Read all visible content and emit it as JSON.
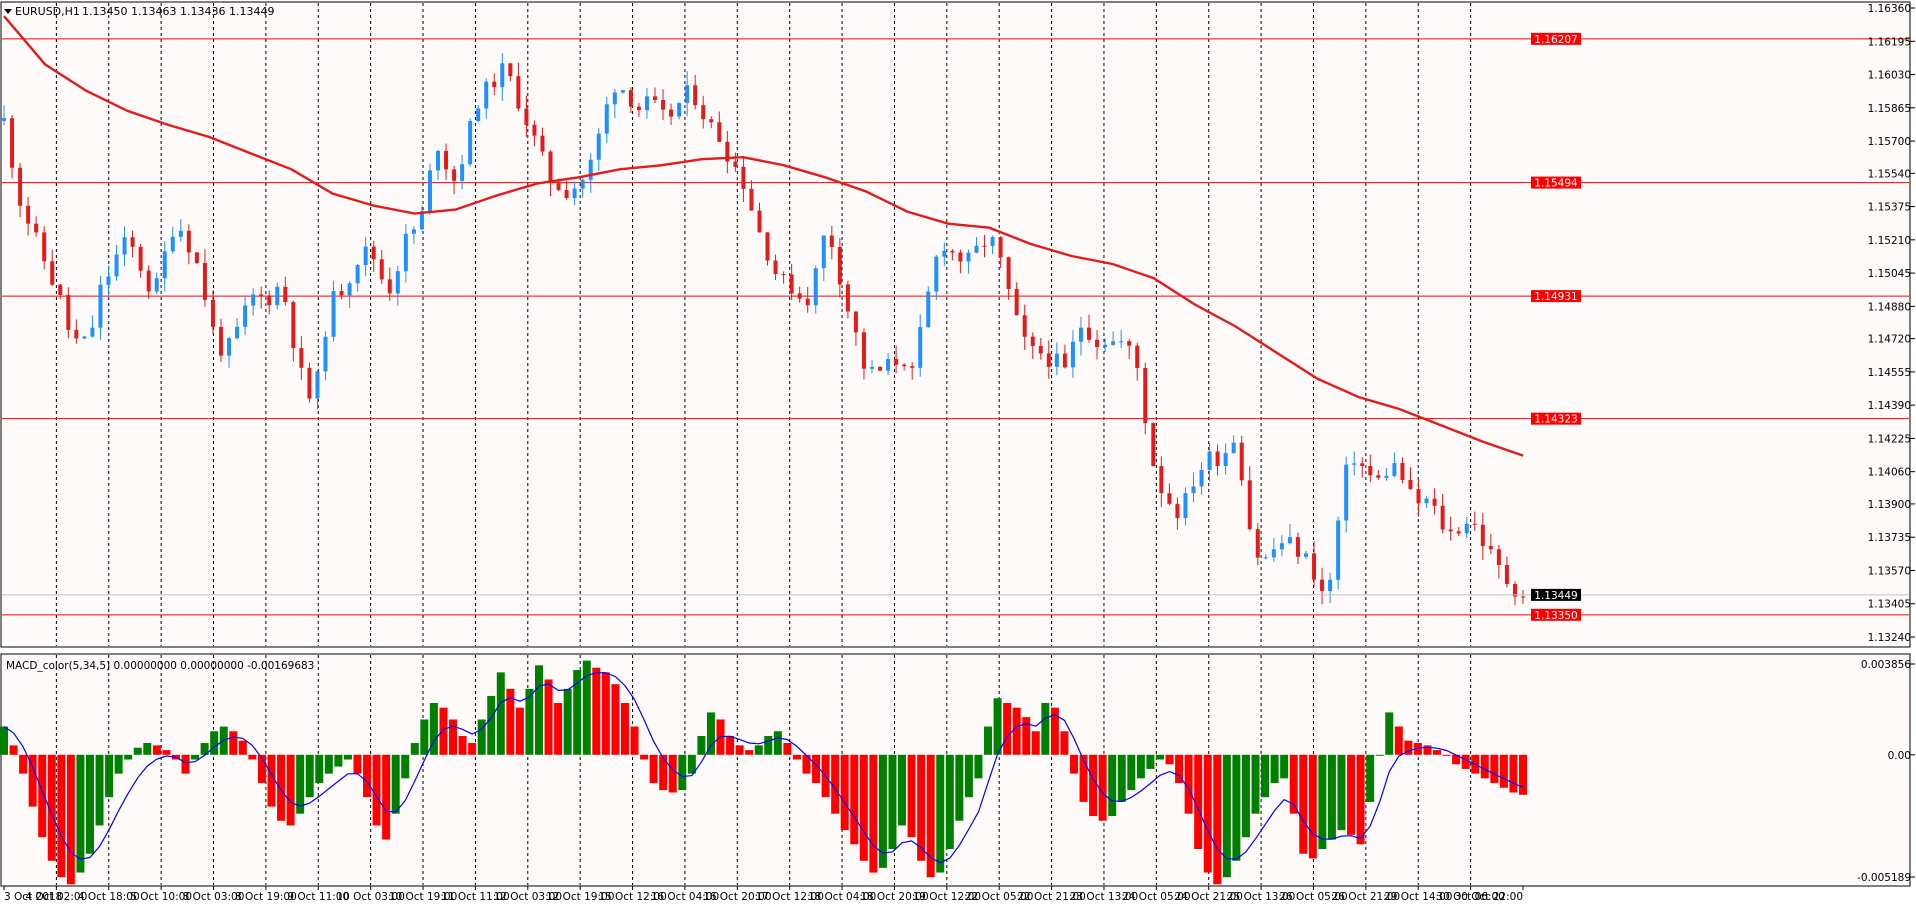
{
  "chart_data": [
    {
      "type": "candlestick",
      "header": {
        "symbol": "EURUSD,H1",
        "ohlc": "1.13450 1.13463 1.13436 1.13449"
      },
      "ylim": [
        1.1324,
        1.1636
      ],
      "price_ticks": [
        "1.16360",
        "1.16195",
        "1.16030",
        "1.15865",
        "1.15700",
        "1.15540",
        "1.15375",
        "1.15210",
        "1.15045",
        "1.14880",
        "1.14720",
        "1.14555",
        "1.14390",
        "1.14225",
        "1.14060",
        "1.13900",
        "1.13735",
        "1.13570",
        "1.13405",
        "1.13240"
      ],
      "horizontal_levels": [
        {
          "value": 1.16207,
          "label": "1.16207"
        },
        {
          "value": 1.15494,
          "label": "1.15494"
        },
        {
          "value": 1.14931,
          "label": "1.14931"
        },
        {
          "value": 1.14323,
          "label": "1.14323"
        },
        {
          "value": 1.1335,
          "label": "1.13350"
        }
      ],
      "current_price": {
        "value": 1.13449,
        "label": "1.13449"
      },
      "time_labels": [
        "3 Oct 2018",
        "4 Oct 02:00",
        "4 Oct 18:00",
        "5 Oct 10:00",
        "8 Oct 03:00",
        "8 Oct 19:00",
        "9 Oct 11:00",
        "10 Oct 03:00",
        "10 Oct 19:00",
        "11 Oct 11:00",
        "12 Oct 03:00",
        "12 Oct 19:00",
        "15 Oct 12:00",
        "16 Oct 04:00",
        "16 Oct 20:00",
        "17 Oct 12:00",
        "18 Oct 04:00",
        "18 Oct 20:00",
        "19 Oct 12:00",
        "22 Oct 05:00",
        "22 Oct 21:00",
        "23 Oct 13:00",
        "24 Oct 05:00",
        "24 Oct 21:00",
        "25 Oct 13:00",
        "26 Oct 05:00",
        "26 Oct 21:00",
        "29 Oct 14:00",
        "30 Oct 06:00",
        "30 Oct 22:00"
      ],
      "close_path": [
        [
          0,
          1.158
        ],
        [
          3,
          1.156
        ],
        [
          6,
          1.154
        ],
        [
          9,
          1.153
        ],
        [
          12,
          1.152
        ],
        [
          15,
          1.151
        ],
        [
          18,
          1.15
        ],
        [
          21,
          1.149
        ],
        [
          24,
          1.1475
        ],
        [
          27,
          1.147
        ],
        [
          30,
          1.147
        ],
        [
          33,
          1.148
        ],
        [
          36,
          1.15
        ],
        [
          39,
          1.1505
        ],
        [
          42,
          1.1515
        ],
        [
          45,
          1.152
        ],
        [
          48,
          1.1515
        ],
        [
          51,
          1.1505
        ],
        [
          54,
          1.1495
        ],
        [
          57,
          1.15
        ],
        [
          60,
          1.152
        ],
        [
          63,
          1.153
        ],
        [
          66,
          1.1525
        ],
        [
          69,
          1.1515
        ],
        [
          72,
          1.1505
        ],
        [
          75,
          1.1485
        ],
        [
          78,
          1.147
        ],
        [
          81,
          1.1465
        ],
        [
          84,
          1.147
        ],
        [
          87,
          1.148
        ],
        [
          90,
          1.149
        ],
        [
          93,
          1.1495
        ],
        [
          96,
          1.149
        ],
        [
          99,
          1.1495
        ],
        [
          102,
          1.15
        ],
        [
          105,
          1.148
        ],
        [
          108,
          1.146
        ],
        [
          111,
          1.1445
        ],
        [
          114,
          1.144
        ],
        [
          117,
          1.147
        ],
        [
          120,
          1.149
        ],
        [
          123,
          1.1495
        ],
        [
          126,
          1.15
        ],
        [
          129,
          1.151
        ],
        [
          132,
          1.1515
        ],
        [
          135,
          1.1515
        ],
        [
          138,
          1.1505
        ],
        [
          141,
          1.1495
        ],
        [
          144,
          1.1505
        ],
        [
          147,
          1.152
        ],
        [
          150,
          1.1525
        ],
        [
          153,
          1.153
        ],
        [
          156,
          1.155
        ],
        [
          159,
          1.157
        ],
        [
          162,
          1.156
        ],
        [
          165,
          1.155
        ],
        [
          168,
          1.156
        ],
        [
          171,
          1.1575
        ],
        [
          174,
          1.159
        ],
        [
          177,
          1.1595
        ],
        [
          180,
          1.16
        ],
        [
          183,
          1.1605
        ],
        [
          186,
          1.16
        ],
        [
          189,
          1.159
        ],
        [
          192,
          1.158
        ],
        [
          195,
          1.157
        ],
        [
          198,
          1.156
        ],
        [
          201,
          1.155
        ],
        [
          204,
          1.1548
        ],
        [
          207,
          1.1545
        ],
        [
          210,
          1.1548
        ],
        [
          213,
          1.1552
        ],
        [
          216,
          1.156
        ],
        [
          219,
          1.1575
        ],
        [
          222,
          1.159
        ],
        [
          225,
          1.16
        ],
        [
          228,
          1.1595
        ],
        [
          231,
          1.159
        ],
        [
          234,
          1.1585
        ],
        [
          237,
          1.159
        ],
        [
          240,
          1.1585
        ],
        [
          243,
          1.158
        ],
        [
          246,
          1.1585
        ],
        [
          249,
          1.159
        ],
        [
          252,
          1.1595
        ],
        [
          255,
          1.159
        ],
        [
          258,
          1.158
        ],
        [
          261,
          1.1575
        ],
        [
          264,
          1.157
        ],
        [
          267,
          1.156
        ],
        [
          270,
          1.1555
        ],
        [
          273,
          1.1545
        ],
        [
          276,
          1.153
        ],
        [
          279,
          1.152
        ],
        [
          282,
          1.151
        ],
        [
          285,
          1.15
        ],
        [
          288,
          1.15
        ],
        [
          291,
          1.1495
        ],
        [
          294,
          1.149
        ],
        [
          297,
          1.1495
        ],
        [
          300,
          1.152
        ],
        [
          303,
          1.1525
        ],
        [
          306,
          1.151
        ],
        [
          309,
          1.149
        ],
        [
          312,
          1.148
        ],
        [
          315,
          1.146
        ],
        [
          318,
          1.1455
        ],
        [
          321,
          1.1455
        ],
        [
          324,
          1.1458
        ],
        [
          327,
          1.146
        ],
        [
          330,
          1.1465
        ],
        [
          333,
          1.145
        ],
        [
          336,
          1.147
        ],
        [
          339,
          1.149
        ],
        [
          342,
          1.151
        ],
        [
          345,
          1.152
        ],
        [
          348,
          1.1515
        ],
        [
          351,
          1.1512
        ],
        [
          354,
          1.151
        ],
        [
          357,
          1.1515
        ],
        [
          360,
          1.152
        ],
        [
          363,
          1.152
        ],
        [
          366,
          1.151
        ],
        [
          369,
          1.1495
        ],
        [
          372,
          1.148
        ],
        [
          375,
          1.147
        ],
        [
          378,
          1.1465
        ],
        [
          381,
          1.1465
        ],
        [
          384,
          1.1462
        ],
        [
          387,
          1.146
        ],
        [
          390,
          1.1455
        ],
        [
          393,
          1.147
        ],
        [
          396,
          1.148
        ],
        [
          399,
          1.1475
        ],
        [
          402,
          1.147
        ],
        [
          405,
          1.1472
        ],
        [
          408,
          1.147
        ],
        [
          411,
          1.147
        ],
        [
          414,
          1.1465
        ],
        [
          417,
          1.1455
        ],
        [
          420,
          1.1425
        ],
        [
          423,
          1.1405
        ],
        [
          426,
          1.1395
        ],
        [
          429,
          1.139
        ],
        [
          432,
          1.1385
        ],
        [
          435,
          1.1395
        ],
        [
          438,
          1.1405
        ],
        [
          441,
          1.141
        ],
        [
          444,
          1.1415
        ],
        [
          447,
          1.1412
        ],
        [
          450,
          1.142
        ],
        [
          453,
          1.1425
        ],
        [
          456,
          1.139
        ],
        [
          459,
          1.137
        ],
        [
          462,
          1.136
        ],
        [
          465,
          1.1365
        ],
        [
          468,
          1.137
        ],
        [
          471,
          1.1372
        ],
        [
          474,
          1.1368
        ],
        [
          477,
          1.1365
        ],
        [
          480,
          1.136
        ],
        [
          483,
          1.135
        ],
        [
          486,
          1.134
        ],
        [
          489,
          1.137
        ],
        [
          492,
          1.14
        ],
        [
          495,
          1.1415
        ],
        [
          498,
          1.141
        ],
        [
          501,
          1.1405
        ],
        [
          504,
          1.14
        ],
        [
          507,
          1.1405
        ],
        [
          510,
          1.141
        ],
        [
          513,
          1.1405
        ],
        [
          516,
          1.1395
        ],
        [
          519,
          1.139
        ],
        [
          522,
          1.1392
        ],
        [
          525,
          1.1388
        ],
        [
          528,
          1.138
        ],
        [
          531,
          1.1375
        ],
        [
          534,
          1.1378
        ],
        [
          537,
          1.1382
        ],
        [
          540,
          1.138
        ],
        [
          543,
          1.1372
        ],
        [
          546,
          1.1365
        ],
        [
          549,
          1.1358
        ],
        [
          552,
          1.1352
        ],
        [
          555,
          1.1348
        ],
        [
          558,
          1.1345
        ]
      ],
      "ma_path": [
        [
          0,
          1.1632
        ],
        [
          15,
          1.1608
        ],
        [
          30,
          1.1595
        ],
        [
          45,
          1.1585
        ],
        [
          60,
          1.1578
        ],
        [
          75,
          1.1572
        ],
        [
          90,
          1.1564
        ],
        [
          105,
          1.1556
        ],
        [
          120,
          1.1544
        ],
        [
          135,
          1.1538
        ],
        [
          150,
          1.1534
        ],
        [
          165,
          1.1536
        ],
        [
          180,
          1.1543
        ],
        [
          195,
          1.1549
        ],
        [
          210,
          1.1552
        ],
        [
          225,
          1.1556
        ],
        [
          240,
          1.1558
        ],
        [
          255,
          1.1561
        ],
        [
          270,
          1.1562
        ],
        [
          285,
          1.1558
        ],
        [
          300,
          1.1552
        ],
        [
          315,
          1.1545
        ],
        [
          330,
          1.1535
        ],
        [
          345,
          1.1529
        ],
        [
          360,
          1.1527
        ],
        [
          375,
          1.1519
        ],
        [
          390,
          1.1513
        ],
        [
          405,
          1.1509
        ],
        [
          420,
          1.1502
        ],
        [
          435,
          1.1489
        ],
        [
          450,
          1.1478
        ],
        [
          465,
          1.1465
        ],
        [
          480,
          1.1452
        ],
        [
          495,
          1.1443
        ],
        [
          510,
          1.1437
        ],
        [
          525,
          1.1429
        ],
        [
          540,
          1.1421
        ],
        [
          555,
          1.1414
        ]
      ]
    },
    {
      "type": "bar",
      "title": "MACD_color(5,34,5) 0.00000000 0.00000000 -0.00169683",
      "ylim": [
        -0.005189,
        0.003856
      ],
      "y_ticks": [
        "0.003856",
        "0.00",
        "-0.005189"
      ],
      "series": [
        {
          "name": "",
          "values": [
            0.0012,
            0.0004,
            -0.0008,
            -0.0022,
            -0.0035,
            -0.0045,
            -0.0052,
            -0.0055,
            -0.005,
            -0.0042,
            -0.003,
            -0.0018,
            -0.0008,
            -0.0002,
            0.0003,
            0.0005,
            0.0004,
            0.0002,
            -0.0002,
            -0.0008,
            -0.0002,
            0.0005,
            0.001,
            0.0012,
            0.001,
            0.0006,
            -0.0002,
            -0.0012,
            -0.0022,
            -0.0028,
            -0.003,
            -0.0025,
            -0.0018,
            -0.0012,
            -0.0008,
            -0.0005,
            -0.0002,
            -0.0008,
            -0.0018,
            -0.003,
            -0.0036,
            -0.0025,
            -0.001,
            0.0005,
            0.0015,
            0.0022,
            0.002,
            0.0015,
            0.0008,
            0.0005,
            0.0015,
            0.0025,
            0.0035,
            0.0028,
            0.002,
            0.0028,
            0.0038,
            0.0032,
            0.0022,
            0.0028,
            0.0036,
            0.004,
            0.0037,
            0.0035,
            0.003,
            0.0022,
            0.0012,
            -0.0002,
            -0.0012,
            -0.0015,
            -0.0016,
            -0.0015,
            -0.0008,
            0.0008,
            0.0018,
            0.0015,
            0.0008,
            0.0004,
            0.0002,
            0.0004,
            0.0008,
            0.001,
            0.0005,
            -0.0002,
            -0.0008,
            -0.0012,
            -0.0018,
            -0.0025,
            -0.0032,
            -0.0038,
            -0.0045,
            -0.005,
            -0.0048,
            -0.004,
            -0.003,
            -0.0035,
            -0.0045,
            -0.0052,
            -0.005,
            -0.004,
            -0.0028,
            -0.0018,
            -0.001,
            0.0012,
            0.0024,
            0.0022,
            0.002,
            0.0016,
            0.001,
            0.0022,
            0.002,
            0.001,
            -0.0008,
            -0.002,
            -0.0026,
            -0.0028,
            -0.0026,
            -0.002,
            -0.0015,
            -0.001,
            -0.0006,
            -0.0002,
            -0.0004,
            -0.0012,
            -0.0025,
            -0.004,
            -0.005,
            -0.0055,
            -0.0052,
            -0.0045,
            -0.0035,
            -0.0025,
            -0.0018,
            -0.0012,
            -0.001,
            -0.0025,
            -0.0042,
            -0.0044,
            -0.004,
            -0.0036,
            -0.0032,
            -0.0034,
            -0.0038,
            -0.002,
            0.0,
            0.0018,
            0.0012,
            0.0006,
            0.0005,
            0.0004,
            0.0002,
            0.0,
            -0.0004,
            -0.0006,
            -0.0008,
            -0.001,
            -0.0012,
            -0.0014,
            -0.0016,
            -0.0017
          ]
        }
      ]
    }
  ]
}
